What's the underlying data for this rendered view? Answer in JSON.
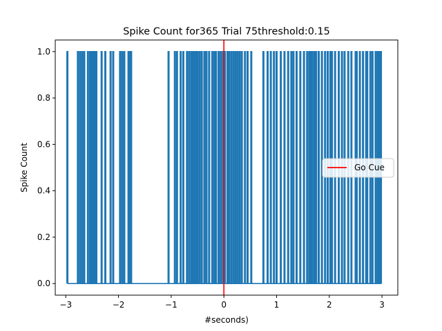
{
  "chart_data": {
    "type": "line",
    "title": "Spike Count for365 Trial 75threshold:0.15",
    "xlabel": "#seconds)",
    "ylabel": "Spike Count",
    "xlim": [
      -3.2,
      3.3
    ],
    "ylim": [
      -0.05,
      1.05
    ],
    "xticks": [
      -3,
      -2,
      -1,
      0,
      1,
      2,
      3
    ],
    "yticks": [
      0.0,
      0.2,
      0.4,
      0.6,
      0.8,
      1.0
    ],
    "xtick_labels": [
      "−3",
      "−2",
      "−1",
      "0",
      "1",
      "2",
      "3"
    ],
    "ytick_labels": [
      "0.0",
      "0.2",
      "0.4",
      "0.6",
      "0.8",
      "1.0"
    ],
    "grid": false,
    "legend_position": "center-right",
    "series": [
      {
        "name": "",
        "color": "#1f77b4",
        "x_range": [
          -2.97,
          2.99
        ],
        "baseline": 0,
        "spike_value": 1,
        "spike_times": [
          -2.97,
          -2.77,
          -2.73,
          -2.69,
          -2.65,
          -2.58,
          -2.54,
          -2.51,
          -2.48,
          -2.45,
          -2.42,
          -2.32,
          -2.25,
          -2.15,
          -2.1,
          -1.97,
          -1.93,
          -1.89,
          -1.81,
          -1.78,
          -1.76,
          -1.05,
          -0.93,
          -0.89,
          -0.82,
          -0.77,
          -0.7,
          -0.66,
          -0.62,
          -0.59,
          -0.56,
          -0.53,
          -0.5,
          -0.46,
          -0.42,
          -0.37,
          -0.33,
          -0.28,
          -0.22,
          -0.18,
          -0.15,
          -0.1,
          -0.06,
          -0.02,
          0.02,
          0.07,
          0.1,
          0.14,
          0.18,
          0.22,
          0.26,
          0.3,
          0.34,
          0.4,
          0.45,
          0.52,
          0.75,
          0.83,
          0.89,
          0.95,
          1.0,
          1.08,
          1.15,
          1.22,
          1.28,
          1.32,
          1.38,
          1.45,
          1.52,
          1.58,
          1.62,
          1.65,
          1.68,
          1.72,
          1.75,
          1.8,
          1.86,
          1.92,
          1.97,
          2.02,
          2.05,
          2.11,
          2.18,
          2.24,
          2.29,
          2.36,
          2.42,
          2.5,
          2.52,
          2.58,
          2.64,
          2.7,
          2.72,
          2.78,
          2.82,
          2.88,
          2.92,
          2.95,
          2.98
        ]
      },
      {
        "name": "Go Cue",
        "color": "#ff0000",
        "type": "vline",
        "x": 0
      }
    ]
  }
}
